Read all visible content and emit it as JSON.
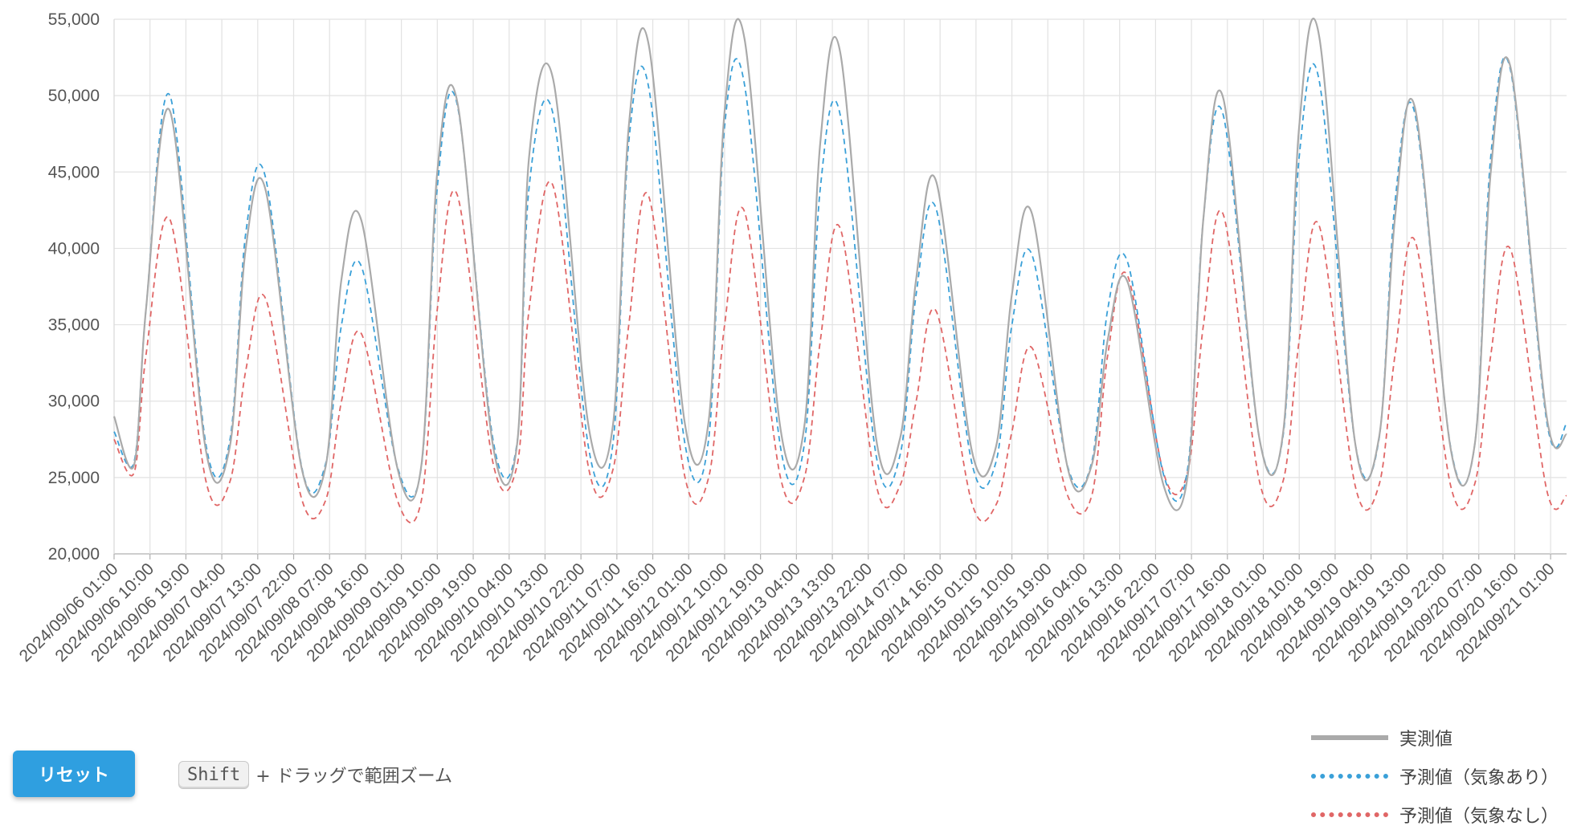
{
  "chart_data": {
    "type": "line",
    "ylim": [
      20000,
      55000
    ],
    "y_ticks": [
      "20,000",
      "25,000",
      "30,000",
      "35,000",
      "40,000",
      "45,000",
      "50,000",
      "55,000"
    ],
    "y_tick_values": [
      20000,
      25000,
      30000,
      35000,
      40000,
      45000,
      50000,
      55000
    ],
    "x_tick_labels": [
      "2024/09/06 01:00",
      "2024/09/06 10:00",
      "2024/09/06 19:00",
      "2024/09/07 04:00",
      "2024/09/07 13:00",
      "2024/09/07 22:00",
      "2024/09/08 07:00",
      "2024/09/08 16:00",
      "2024/09/09 01:00",
      "2024/09/09 10:00",
      "2024/09/09 19:00",
      "2024/09/10 04:00",
      "2024/09/10 13:00",
      "2024/09/10 22:00",
      "2024/09/11 07:00",
      "2024/09/11 16:00",
      "2024/09/12 01:00",
      "2024/09/12 10:00",
      "2024/09/12 19:00",
      "2024/09/13 04:00",
      "2024/09/13 13:00",
      "2024/09/13 22:00",
      "2024/09/14 07:00",
      "2024/09/14 16:00",
      "2024/09/15 01:00",
      "2024/09/15 10:00",
      "2024/09/15 19:00",
      "2024/09/16 04:00",
      "2024/09/16 13:00",
      "2024/09/16 22:00",
      "2024/09/17 07:00",
      "2024/09/17 16:00",
      "2024/09/18 01:00",
      "2024/09/18 10:00",
      "2024/09/18 19:00",
      "2024/09/19 04:00",
      "2024/09/19 13:00",
      "2024/09/19 22:00",
      "2024/09/20 07:00",
      "2024/09/20 16:00",
      "2024/09/21 01:00"
    ],
    "x_tick_hours": [
      0,
      9,
      18,
      27,
      36,
      45,
      54,
      63,
      72,
      81,
      90,
      99,
      108,
      117,
      126,
      135,
      144,
      153,
      162,
      171,
      180,
      189,
      198,
      207,
      216,
      225,
      234,
      243,
      252,
      261,
      270,
      279,
      288,
      297,
      306,
      315,
      324,
      333,
      342,
      351,
      360
    ],
    "x_range_hours": [
      0,
      364
    ],
    "daily_points_note_hours": [
      5,
      14,
      23
    ],
    "series": [
      {
        "name": "実測値",
        "color": "#aaaaaa",
        "style": "solid",
        "x_hours": [
          0,
          5,
          8,
          14,
          23,
          29,
          33,
          38,
          47,
          53,
          57,
          62,
          71,
          77,
          81,
          86,
          95,
          101,
          104,
          110,
          119,
          125,
          129,
          134,
          143,
          149,
          153,
          158,
          167,
          173,
          177,
          182,
          191,
          197,
          201,
          206,
          215,
          221,
          225,
          230,
          239,
          245,
          249,
          254,
          263,
          269,
          273,
          278,
          287,
          293,
          297,
          302,
          311,
          317,
          321,
          326,
          335,
          341,
          345,
          350,
          359,
          364
        ],
        "values": [
          29000,
          25800,
          36000,
          49000,
          26800,
          27000,
          40000,
          43800,
          25600,
          25700,
          38000,
          41800,
          25600,
          25800,
          45000,
          49600,
          27000,
          27200,
          46000,
          51100,
          28200,
          28400,
          48000,
          53300,
          28600,
          28700,
          49000,
          53700,
          28200,
          28400,
          47000,
          52800,
          27500,
          27600,
          38000,
          44400,
          26700,
          27000,
          37000,
          42300,
          25600,
          25800,
          34000,
          37800,
          24500,
          25000,
          42000,
          49800,
          27600,
          28000,
          48000,
          53900,
          27300,
          27600,
          42000,
          49200,
          26800,
          27200,
          45000,
          51800,
          29000,
          27800
        ]
      },
      {
        "name": "予測値（気象あり）",
        "color": "#3aa0d8",
        "style": "dashed",
        "x_hours": [
          0,
          5,
          8,
          14,
          23,
          29,
          33,
          38,
          47,
          53,
          57,
          62,
          71,
          77,
          81,
          86,
          95,
          101,
          104,
          110,
          119,
          125,
          129,
          134,
          143,
          149,
          153,
          158,
          167,
          173,
          177,
          182,
          191,
          197,
          201,
          206,
          215,
          221,
          225,
          230,
          239,
          245,
          249,
          254,
          263,
          269,
          273,
          278,
          287,
          293,
          297,
          302,
          311,
          317,
          321,
          326,
          335,
          341,
          345,
          350,
          359,
          364
        ],
        "values": [
          28000,
          26000,
          36000,
          50000,
          27200,
          27400,
          41000,
          44600,
          25700,
          25900,
          35000,
          38800,
          25700,
          25700,
          44000,
          49400,
          27400,
          27300,
          44000,
          48800,
          26800,
          27200,
          47000,
          50500,
          27300,
          27500,
          48000,
          50700,
          27000,
          27200,
          44000,
          48700,
          26400,
          26500,
          37000,
          42600,
          25900,
          26000,
          35000,
          39600,
          25700,
          26000,
          36000,
          39100,
          25200,
          25500,
          42000,
          48700,
          27600,
          27800,
          46000,
          51000,
          27300,
          27500,
          43000,
          48800,
          26900,
          27200,
          46000,
          51600,
          28700,
          28500
        ]
      },
      {
        "name": "予測値（気象なし）",
        "color": "#e06666",
        "style": "dashed",
        "x_hours": [
          0,
          5,
          8,
          14,
          23,
          29,
          33,
          38,
          47,
          53,
          57,
          62,
          71,
          77,
          81,
          86,
          95,
          101,
          104,
          110,
          119,
          125,
          129,
          134,
          143,
          149,
          153,
          158,
          167,
          173,
          177,
          182,
          191,
          197,
          201,
          206,
          215,
          221,
          225,
          230,
          239,
          245,
          249,
          254,
          263,
          269,
          273,
          278,
          287,
          293,
          297,
          302,
          311,
          317,
          321,
          326,
          335,
          341,
          345,
          350,
          359,
          364
        ],
        "values": [
          27500,
          25300,
          33000,
          41900,
          24800,
          24700,
          32000,
          36700,
          23600,
          23500,
          30000,
          34400,
          23500,
          23500,
          36000,
          43500,
          25900,
          25800,
          36000,
          44100,
          25500,
          25500,
          35000,
          43400,
          25100,
          25000,
          35000,
          42400,
          25000,
          25000,
          34000,
          41300,
          24500,
          24500,
          30000,
          35900,
          23300,
          23200,
          28000,
          33500,
          23800,
          23800,
          33000,
          38200,
          25300,
          25300,
          35000,
          42200,
          24800,
          24800,
          34000,
          41500,
          24500,
          24500,
          33000,
          40500,
          24400,
          24600,
          33000,
          39900,
          24200,
          23800
        ]
      }
    ]
  },
  "controls": {
    "reset_label": "リセット",
    "key_label": "Shift",
    "hint_text": "+ ドラッグで範囲ズーム"
  },
  "legend": [
    {
      "label": "実測値",
      "color": "#aaaaaa",
      "style": "solid"
    },
    {
      "label": "予測値（気象あり）",
      "color": "#3aa0d8",
      "style": "dashed"
    },
    {
      "label": "予測値（気象なし）",
      "color": "#e06666",
      "style": "dashed"
    }
  ]
}
